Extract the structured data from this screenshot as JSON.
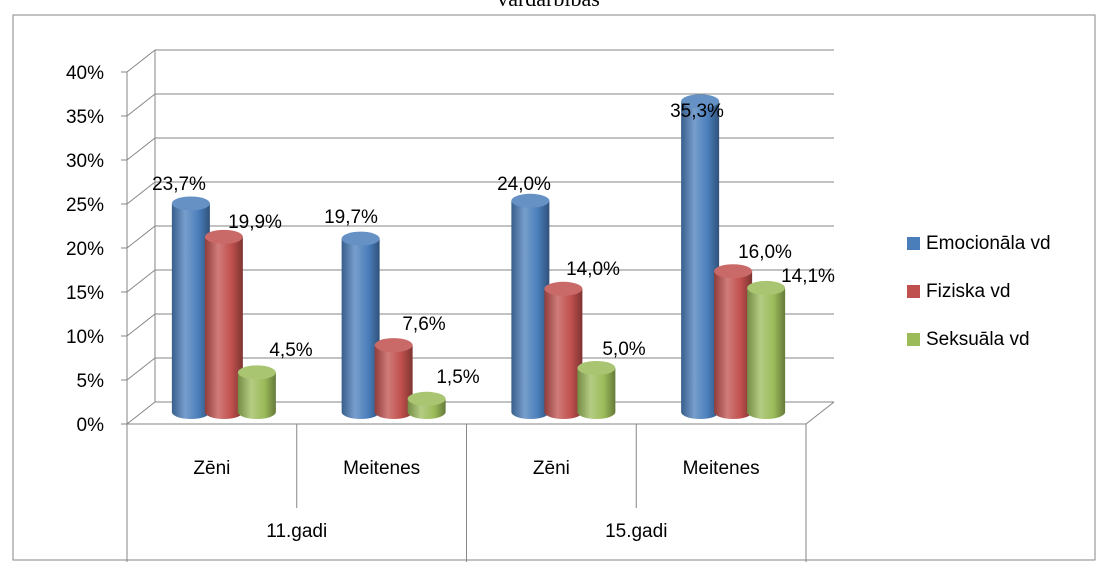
{
  "title": "vardarbības",
  "chart_data": {
    "type": "bar",
    "title": "vardarbības",
    "groups": [
      {
        "label": "11.gadi",
        "categories": [
          "Zēni",
          "Meitenes"
        ]
      },
      {
        "label": "15.gadi",
        "categories": [
          "Zēni",
          "Meitenes"
        ]
      }
    ],
    "categories": [
      "Zēni",
      "Meitenes",
      "Zēni",
      "Meitenes"
    ],
    "series": [
      {
        "name": "Emocionāla vd",
        "color": "#4a7ebb",
        "values": [
          23.7,
          19.7,
          24.0,
          35.3
        ],
        "labels": [
          "23,7%",
          "19,7%",
          "24,0%",
          "35,3%"
        ]
      },
      {
        "name": "Fiziska vd",
        "color": "#c0504d",
        "values": [
          19.9,
          7.6,
          14.0,
          16.0
        ],
        "labels": [
          "19,9%",
          "7,6%",
          "14,0%",
          "16,0%"
        ]
      },
      {
        "name": "Seksuāla vd",
        "color": "#9bbb59",
        "values": [
          4.5,
          1.5,
          5.0,
          14.1
        ],
        "labels": [
          "4,5%",
          "1,5%",
          "5,0%",
          "14,1%"
        ]
      }
    ],
    "y_ticks": [
      "0%",
      "5%",
      "10%",
      "15%",
      "20%",
      "25%",
      "30%",
      "35%",
      "40%"
    ],
    "ylim": [
      0,
      40
    ],
    "grid": true,
    "legend_position": "right"
  }
}
